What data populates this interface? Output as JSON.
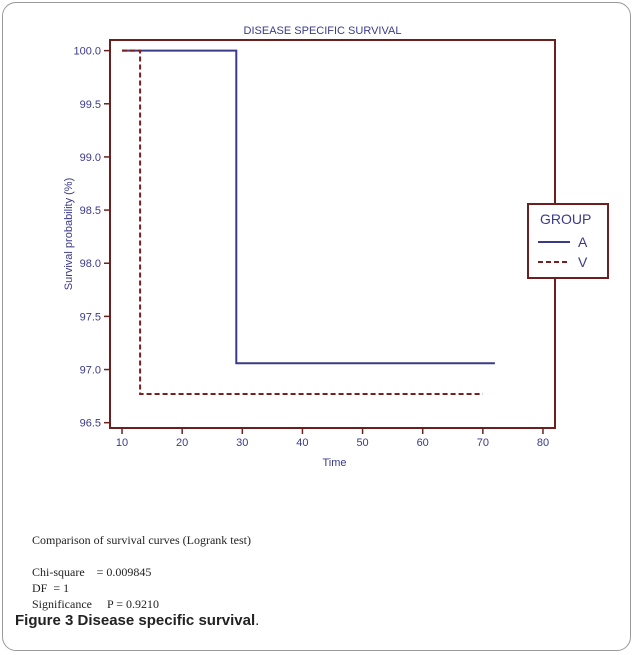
{
  "chart_data": {
    "type": "line",
    "step": true,
    "title": "DISEASE SPECIFIC SURVIVAL",
    "xlabel": "Time",
    "ylabel": "Survival probability (%)",
    "xlim": [
      8,
      82
    ],
    "ylim": [
      96.45,
      100.1
    ],
    "x_ticks": [
      "10",
      "20",
      "30",
      "40",
      "50",
      "60",
      "70",
      "80"
    ],
    "y_ticks": [
      "96.5",
      "97.0",
      "97.5",
      "98.0",
      "98.5",
      "99.0",
      "99.5",
      "100.0"
    ],
    "legend": {
      "title": "GROUP",
      "placement": "right"
    },
    "series": [
      {
        "name": "A",
        "color": "#3a3a8c",
        "dash": "solid",
        "x": [
          10,
          29,
          29,
          72
        ],
        "y": [
          100.0,
          100.0,
          97.06,
          97.06
        ]
      },
      {
        "name": "V",
        "color": "#7a1f1f",
        "dash": "dashed",
        "x": [
          10,
          13,
          13,
          70
        ],
        "y": [
          100.0,
          100.0,
          96.77,
          96.77
        ]
      }
    ]
  },
  "stats": {
    "heading": "Comparison of survival curves (Logrank test)",
    "chi_square": "Chi-square    = 0.009845",
    "df": "DF  = 1",
    "significance": "Significance     P = 0.9210"
  },
  "caption": {
    "label": "Figure 3",
    "text": "Disease specific survival",
    "period": "."
  }
}
